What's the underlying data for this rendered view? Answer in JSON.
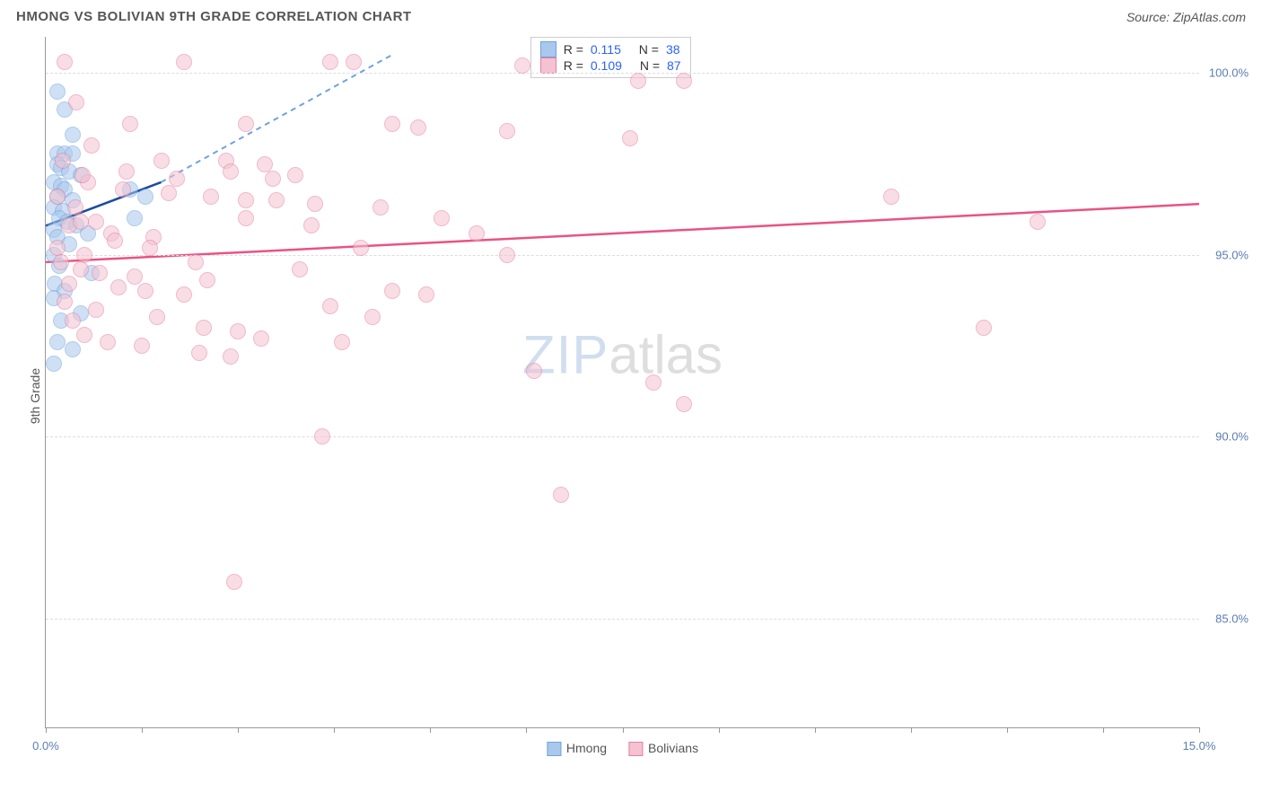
{
  "title": "HMONG VS BOLIVIAN 9TH GRADE CORRELATION CHART",
  "source": "Source: ZipAtlas.com",
  "y_axis_label": "9th Grade",
  "watermark": {
    "part1": "ZIP",
    "part2": "atlas"
  },
  "chart": {
    "type": "scatter",
    "xlim": [
      0,
      15
    ],
    "ylim": [
      82,
      101
    ],
    "xtick_positions": [
      0,
      1.25,
      2.5,
      3.75,
      5,
      6.25,
      7.5,
      8.75,
      10,
      11.25,
      12.5,
      13.75,
      15
    ],
    "xtick_labels": {
      "0": "0.0%",
      "15": "15.0%"
    },
    "ytick_positions": [
      85,
      90,
      95,
      100
    ],
    "ytick_labels": [
      "85.0%",
      "90.0%",
      "95.0%",
      "100.0%"
    ],
    "grid_color": "#dddddd",
    "axis_color": "#999999",
    "background_color": "#ffffff",
    "marker_radius": 9,
    "marker_opacity": 0.55,
    "series": [
      {
        "name": "Hmong",
        "color_fill": "#a8c8ec",
        "color_stroke": "#6fa3dd",
        "R": "0.115",
        "N": "38",
        "points": [
          [
            0.15,
            99.5
          ],
          [
            0.25,
            99.0
          ],
          [
            0.35,
            98.3
          ],
          [
            0.15,
            97.8
          ],
          [
            0.25,
            97.8
          ],
          [
            0.35,
            97.8
          ],
          [
            0.15,
            97.5
          ],
          [
            0.2,
            97.4
          ],
          [
            0.3,
            97.3
          ],
          [
            0.45,
            97.2
          ],
          [
            0.1,
            97.0
          ],
          [
            0.2,
            96.9
          ],
          [
            0.25,
            96.8
          ],
          [
            0.15,
            96.6
          ],
          [
            0.35,
            96.5
          ],
          [
            0.1,
            96.3
          ],
          [
            0.22,
            96.2
          ],
          [
            0.18,
            96.0
          ],
          [
            0.28,
            95.9
          ],
          [
            0.4,
            95.8
          ],
          [
            0.1,
            95.7
          ],
          [
            0.55,
            95.6
          ],
          [
            0.15,
            95.5
          ],
          [
            0.3,
            95.3
          ],
          [
            0.1,
            95.0
          ],
          [
            0.18,
            94.7
          ],
          [
            0.6,
            94.5
          ],
          [
            0.12,
            94.2
          ],
          [
            0.25,
            94.0
          ],
          [
            0.1,
            93.8
          ],
          [
            0.45,
            93.4
          ],
          [
            0.2,
            93.2
          ],
          [
            0.15,
            92.6
          ],
          [
            0.35,
            92.4
          ],
          [
            0.1,
            92.0
          ],
          [
            1.1,
            96.8
          ],
          [
            1.3,
            96.6
          ],
          [
            1.15,
            96.0
          ]
        ],
        "trend_solid": {
          "x1": 0,
          "y1": 95.8,
          "x2": 1.5,
          "y2": 97.0
        },
        "trend_dashed": {
          "x1": 1.5,
          "y1": 97.0,
          "x2": 4.5,
          "y2": 100.5
        },
        "trend_color_solid": "#1a4d9e",
        "trend_color_dashed": "#6fa3dd"
      },
      {
        "name": "Bolivians",
        "color_fill": "#f4c2d0",
        "color_stroke": "#e87fa3",
        "R": "0.109",
        "N": "87",
        "points": [
          [
            0.25,
            100.3
          ],
          [
            1.8,
            100.3
          ],
          [
            3.7,
            100.3
          ],
          [
            4.0,
            100.3
          ],
          [
            6.2,
            100.2
          ],
          [
            7.7,
            99.8
          ],
          [
            8.3,
            99.8
          ],
          [
            0.4,
            99.2
          ],
          [
            1.1,
            98.6
          ],
          [
            2.6,
            98.6
          ],
          [
            4.5,
            98.6
          ],
          [
            4.85,
            98.5
          ],
          [
            6.0,
            98.4
          ],
          [
            7.6,
            98.2
          ],
          [
            0.6,
            98.0
          ],
          [
            1.5,
            97.6
          ],
          [
            2.35,
            97.6
          ],
          [
            2.85,
            97.5
          ],
          [
            3.25,
            97.2
          ],
          [
            0.55,
            97.0
          ],
          [
            1.0,
            96.8
          ],
          [
            1.6,
            96.7
          ],
          [
            2.15,
            96.6
          ],
          [
            2.6,
            96.5
          ],
          [
            3.0,
            96.5
          ],
          [
            3.5,
            96.4
          ],
          [
            4.35,
            96.3
          ],
          [
            5.15,
            96.0
          ],
          [
            0.3,
            95.8
          ],
          [
            0.85,
            95.6
          ],
          [
            1.4,
            95.5
          ],
          [
            0.15,
            95.2
          ],
          [
            0.5,
            95.0
          ],
          [
            6.0,
            95.0
          ],
          [
            0.2,
            94.8
          ],
          [
            0.45,
            94.6
          ],
          [
            0.7,
            94.5
          ],
          [
            1.15,
            94.4
          ],
          [
            2.1,
            94.3
          ],
          [
            2.6,
            96.0
          ],
          [
            0.3,
            94.2
          ],
          [
            0.95,
            94.1
          ],
          [
            1.3,
            94.0
          ],
          [
            1.8,
            93.9
          ],
          [
            4.5,
            94.0
          ],
          [
            4.95,
            93.9
          ],
          [
            0.25,
            93.7
          ],
          [
            0.65,
            93.5
          ],
          [
            1.45,
            93.3
          ],
          [
            3.7,
            93.6
          ],
          [
            4.25,
            93.3
          ],
          [
            0.35,
            93.2
          ],
          [
            2.05,
            93.0
          ],
          [
            2.5,
            92.9
          ],
          [
            2.8,
            92.7
          ],
          [
            3.85,
            92.6
          ],
          [
            0.5,
            92.8
          ],
          [
            1.25,
            92.5
          ],
          [
            2.0,
            92.3
          ],
          [
            2.4,
            92.2
          ],
          [
            0.8,
            92.6
          ],
          [
            11.0,
            96.6
          ],
          [
            12.2,
            93.0
          ],
          [
            12.9,
            95.9
          ],
          [
            3.6,
            90.0
          ],
          [
            6.35,
            91.8
          ],
          [
            7.9,
            91.5
          ],
          [
            8.3,
            90.9
          ],
          [
            6.7,
            88.4
          ],
          [
            2.45,
            86.0
          ],
          [
            0.45,
            95.9
          ],
          [
            0.9,
            95.4
          ],
          [
            1.35,
            95.2
          ],
          [
            1.95,
            94.8
          ],
          [
            3.3,
            94.6
          ],
          [
            0.15,
            96.6
          ],
          [
            0.38,
            96.3
          ],
          [
            0.65,
            95.9
          ],
          [
            1.05,
            97.3
          ],
          [
            1.7,
            97.1
          ],
          [
            2.4,
            97.3
          ],
          [
            2.95,
            97.1
          ],
          [
            3.45,
            95.8
          ],
          [
            4.1,
            95.2
          ],
          [
            5.6,
            95.6
          ],
          [
            0.22,
            97.6
          ],
          [
            0.48,
            97.2
          ]
        ],
        "trend_solid": {
          "x1": 0,
          "y1": 94.8,
          "x2": 15,
          "y2": 96.4
        },
        "trend_color_solid": "#e95383"
      }
    ]
  },
  "correlation_box": {
    "rows": [
      {
        "swatch_fill": "#a8c8ec",
        "swatch_stroke": "#6fa3dd",
        "r_label": "R =",
        "r_value": "0.115",
        "n_label": "N =",
        "n_value": "38"
      },
      {
        "swatch_fill": "#f4c2d0",
        "swatch_stroke": "#e87fa3",
        "r_label": "R =",
        "r_value": "0.109",
        "n_label": "N =",
        "n_value": "87"
      }
    ]
  },
  "legend": [
    {
      "swatch_fill": "#a8c8ec",
      "swatch_stroke": "#6fa3dd",
      "label": "Hmong"
    },
    {
      "swatch_fill": "#f4c2d0",
      "swatch_stroke": "#e87fa3",
      "label": "Bolivians"
    }
  ]
}
